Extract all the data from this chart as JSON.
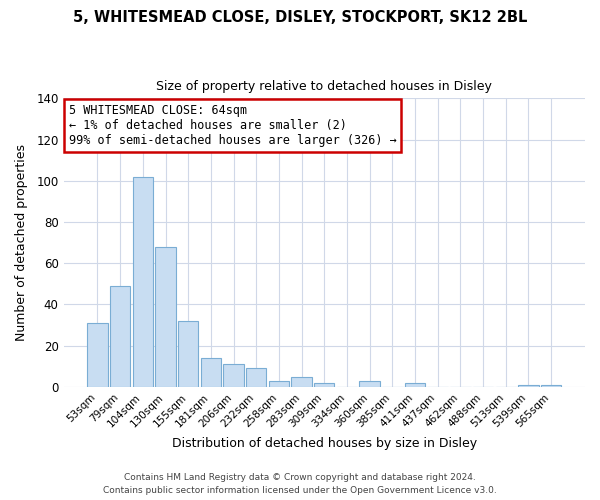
{
  "title": "5, WHITESMEAD CLOSE, DISLEY, STOCKPORT, SK12 2BL",
  "subtitle": "Size of property relative to detached houses in Disley",
  "xlabel": "Distribution of detached houses by size in Disley",
  "ylabel": "Number of detached properties",
  "bar_labels": [
    "53sqm",
    "79sqm",
    "104sqm",
    "130sqm",
    "155sqm",
    "181sqm",
    "206sqm",
    "232sqm",
    "258sqm",
    "283sqm",
    "309sqm",
    "334sqm",
    "360sqm",
    "385sqm",
    "411sqm",
    "437sqm",
    "462sqm",
    "488sqm",
    "513sqm",
    "539sqm",
    "565sqm"
  ],
  "bar_values": [
    31,
    49,
    102,
    68,
    32,
    14,
    11,
    9,
    3,
    5,
    2,
    0,
    3,
    0,
    2,
    0,
    0,
    0,
    0,
    1,
    1
  ],
  "bar_color": "#c8ddf2",
  "bar_edge_color": "#7aadd4",
  "highlight_bar_index": 0,
  "highlight_bar_edge_color": "#cc0000",
  "ylim": [
    0,
    140
  ],
  "yticks": [
    0,
    20,
    40,
    60,
    80,
    100,
    120,
    140
  ],
  "annotation_line1": "5 WHITESMEAD CLOSE: 64sqm",
  "annotation_line2": "← 1% of detached houses are smaller (2)",
  "annotation_line3": "99% of semi-detached houses are larger (326) →",
  "annotation_box_edge": "#cc0000",
  "annotation_box_face": "#ffffff",
  "footer_line1": "Contains HM Land Registry data © Crown copyright and database right 2024.",
  "footer_line2": "Contains public sector information licensed under the Open Government Licence v3.0.",
  "background_color": "#ffffff",
  "grid_color": "#d0d8e8"
}
